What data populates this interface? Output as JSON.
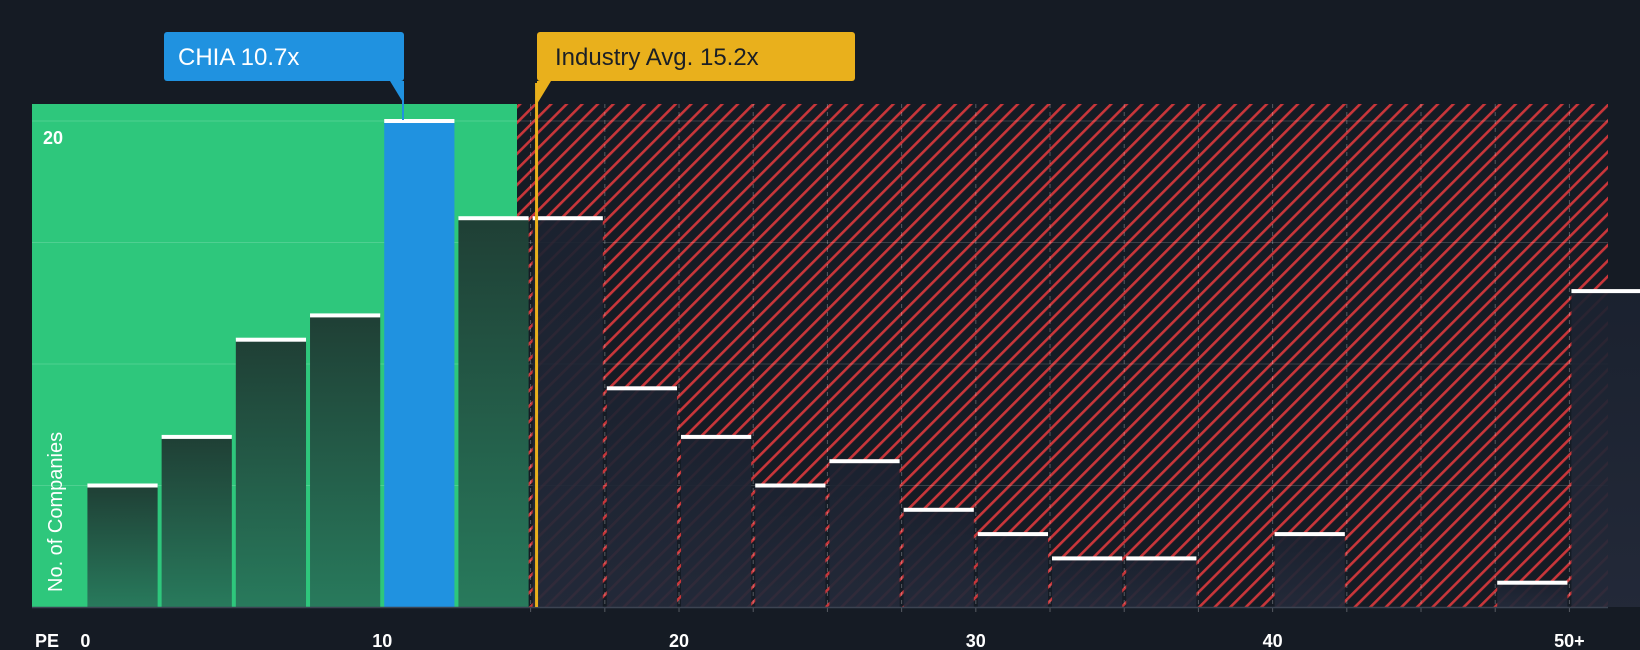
{
  "chart_data": {
    "type": "bar",
    "xlabel": "PE",
    "ylabel": "No. of Companies",
    "x_tick_labels": [
      "0",
      "10",
      "20",
      "30",
      "40",
      "50+"
    ],
    "x_tick_values": [
      0,
      10,
      20,
      30,
      40,
      50
    ],
    "xlim": [
      -1.8,
      51.3
    ],
    "y_tick_label": "20",
    "ylim": [
      0,
      20.7
    ],
    "bin_width": 2.5,
    "bins": [
      {
        "start": 0,
        "value": 5
      },
      {
        "start": 2.5,
        "value": 7
      },
      {
        "start": 5,
        "value": 11
      },
      {
        "start": 7.5,
        "value": 12
      },
      {
        "start": 10,
        "value": 20,
        "highlight": true
      },
      {
        "start": 12.5,
        "value": 16
      },
      {
        "start": 15,
        "value": 16
      },
      {
        "start": 17.5,
        "value": 9
      },
      {
        "start": 20,
        "value": 7
      },
      {
        "start": 22.5,
        "value": 5
      },
      {
        "start": 25,
        "value": 6
      },
      {
        "start": 27.5,
        "value": 4
      },
      {
        "start": 30,
        "value": 3
      },
      {
        "start": 32.5,
        "value": 2
      },
      {
        "start": 35,
        "value": 2
      },
      {
        "start": 37.5,
        "value": 0
      },
      {
        "start": 40,
        "value": 3
      },
      {
        "start": 42.5,
        "value": 0
      },
      {
        "start": 45,
        "value": 0
      },
      {
        "start": 47.5,
        "value": 1
      },
      {
        "start": 50,
        "value": 13
      }
    ],
    "company": {
      "label": "CHIA 10.7x",
      "value": 10.7
    },
    "industry": {
      "label": "Industry Avg. 15.2x",
      "value": 15.2
    },
    "fair_zone_end": 14.6
  },
  "colors": {
    "background": "#151b24",
    "fair_zone": "#2ec77c",
    "overvalued_stripe": "#d23a3c",
    "bar_fill_top": "#20473a",
    "bar_fill_bottom": "#27755a",
    "bar_cap": "#ffffff",
    "highlight_bar": "#2092e0",
    "company_callout": "#2092e0",
    "industry_callout": "#e9b01c"
  }
}
